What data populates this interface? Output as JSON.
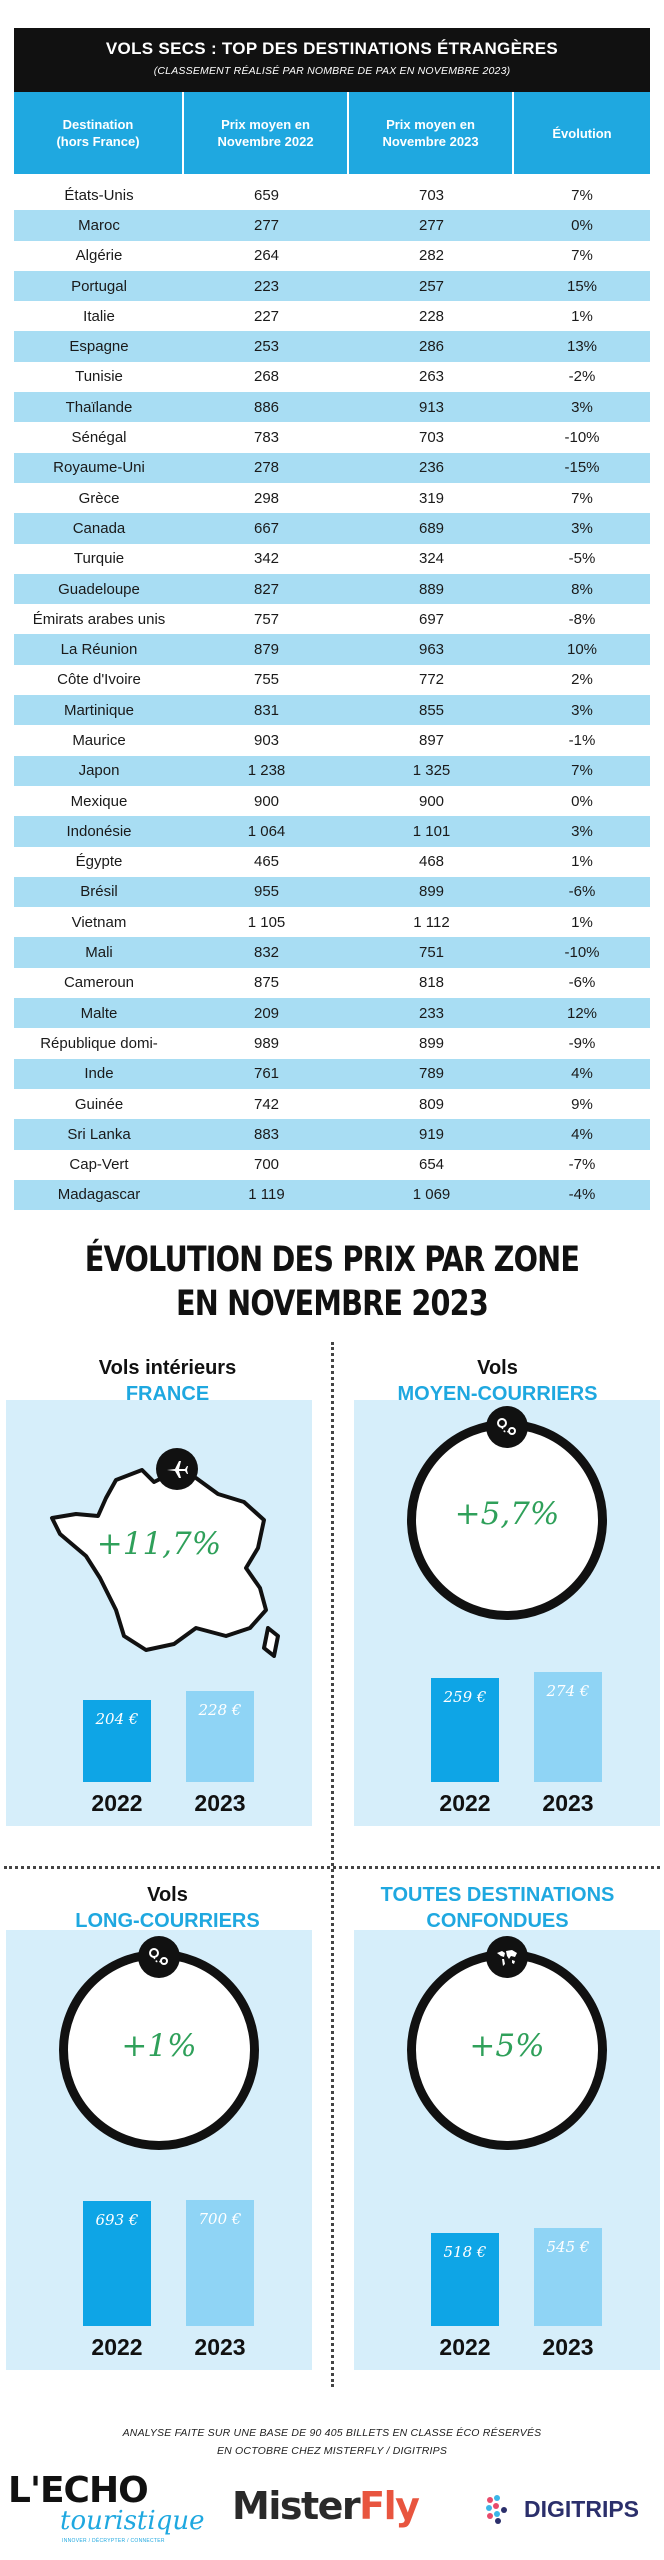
{
  "header": {
    "title": "VOLS SECS : TOP DES DESTINATIONS ÉTRANGÈRES",
    "subtitle": "(CLASSEMENT RÉALISÉ PAR NOMBRE DE PAX EN NOVEMBRE 2023)"
  },
  "table": {
    "columns": [
      [
        "Destination",
        "(hors France)"
      ],
      [
        "Prix moyen en",
        "Novembre 2022"
      ],
      [
        "Prix moyen en",
        "Novembre 2023"
      ],
      [
        "Évolution"
      ]
    ],
    "rows": [
      [
        "États-Unis",
        "659",
        "703",
        "7%"
      ],
      [
        "Maroc",
        "277",
        "277",
        "0%"
      ],
      [
        "Algérie",
        "264",
        "282",
        "7%"
      ],
      [
        "Portugal",
        "223",
        "257",
        "15%"
      ],
      [
        "Italie",
        "227",
        "228",
        "1%"
      ],
      [
        "Espagne",
        "253",
        "286",
        "13%"
      ],
      [
        "Tunisie",
        "268",
        "263",
        "-2%"
      ],
      [
        "Thaïlande",
        "886",
        "913",
        "3%"
      ],
      [
        "Sénégal",
        "783",
        "703",
        "-10%"
      ],
      [
        "Royaume-Uni",
        "278",
        "236",
        "-15%"
      ],
      [
        "Grèce",
        "298",
        "319",
        "7%"
      ],
      [
        "Canada",
        "667",
        "689",
        "3%"
      ],
      [
        "Turquie",
        "342",
        "324",
        "-5%"
      ],
      [
        "Guadeloupe",
        "827",
        "889",
        "8%"
      ],
      [
        "Émirats arabes unis",
        "757",
        "697",
        "-8%"
      ],
      [
        "La Réunion",
        "879",
        "963",
        "10%"
      ],
      [
        "Côte d'Ivoire",
        "755",
        "772",
        "2%"
      ],
      [
        "Martinique",
        "831",
        "855",
        "3%"
      ],
      [
        "Maurice",
        "903",
        "897",
        "-1%"
      ],
      [
        "Japon",
        "1 238",
        "1 325",
        "7%"
      ],
      [
        "Mexique",
        "900",
        "900",
        "0%"
      ],
      [
        "Indonésie",
        "1 064",
        "1 101",
        "3%"
      ],
      [
        "Égypte",
        "465",
        "468",
        "1%"
      ],
      [
        "Brésil",
        "955",
        "899",
        "-6%"
      ],
      [
        "Vietnam",
        "1 105",
        "1 112",
        "1%"
      ],
      [
        "Mali",
        "832",
        "751",
        "-10%"
      ],
      [
        "Cameroun",
        "875",
        "818",
        "-6%"
      ],
      [
        "Malte",
        "209",
        "233",
        "12%"
      ],
      [
        "République domi-",
        "989",
        "899",
        "-9%"
      ],
      [
        "Inde",
        "761",
        "789",
        "4%"
      ],
      [
        "Guinée",
        "742",
        "809",
        "9%"
      ],
      [
        "Sri Lanka",
        "883",
        "919",
        "4%"
      ],
      [
        "Cap-Vert",
        "700",
        "654",
        "-7%"
      ],
      [
        "Madagascar",
        "1 119",
        "1 069",
        "-4%"
      ]
    ]
  },
  "section": {
    "title_line1": "ÉVOLUTION DES PRIX PAR ZONE",
    "title_line2": "EN NOVEMBRE 2023"
  },
  "chart_data": [
    {
      "type": "bar",
      "title": "Vols intérieurs FRANCE",
      "categories": [
        "2022",
        "2023"
      ],
      "values": [
        204,
        228
      ],
      "labels": [
        "204 €",
        "228 €"
      ],
      "change": "+11,7%",
      "icon": "airplane-icon"
    },
    {
      "type": "bar",
      "title": "Vols MOYEN-COURRIERS",
      "categories": [
        "2022",
        "2023"
      ],
      "values": [
        259,
        274
      ],
      "labels": [
        "259 €",
        "274 €"
      ],
      "change": "+5,7%",
      "icon": "route-pins-icon"
    },
    {
      "type": "bar",
      "title": "Vols LONG-COURRIERS",
      "categories": [
        "2022",
        "2023"
      ],
      "values": [
        693,
        700
      ],
      "labels": [
        "693 €",
        "700 €"
      ],
      "change": "+1%",
      "icon": "route-pins-icon"
    },
    {
      "type": "bar",
      "title": "TOUTES DESTINATIONS CONFONDUES",
      "categories": [
        "2022",
        "2023"
      ],
      "values": [
        518,
        545
      ],
      "labels": [
        "518 €",
        "545 €"
      ],
      "change": "+5%",
      "icon": "world-map-icon"
    }
  ],
  "zones": [
    {
      "line1": "Vols intérieurs",
      "line2": "FRANCE"
    },
    {
      "line1": "Vols",
      "line2": "MOYEN-COURRIERS"
    },
    {
      "line1": "Vols",
      "line2": "LONG-COURRIERS"
    },
    {
      "line1": "TOUTES DESTINATIONS",
      "line2": "CONFONDUES"
    }
  ],
  "footer": {
    "note_line1": "ANALYSE FAITE SUR UNE BASE DE 90 405 BILLETS EN CLASSE ÉCO RÉSERVÉS",
    "note_line2": "EN OCTOBRE CHEZ MISTERFLY / DIGITRIPS",
    "logo1_main": "L'ECHO",
    "logo1_script": "touristique",
    "logo1_tag": "INNOVER / DÉCRYPTER / CONNECTER",
    "logo2_a": "Mister",
    "logo2_b": "Fly",
    "logo3": "DIGITRIPS"
  },
  "colors": {
    "accent": "#1fa8e0",
    "row_alt": "#a8ddf3",
    "panel_bg": "#d6eefa",
    "bar_2022": "#0ea5e6",
    "bar_2023": "#8fd4f5",
    "percent_text": "#2fa05a"
  }
}
